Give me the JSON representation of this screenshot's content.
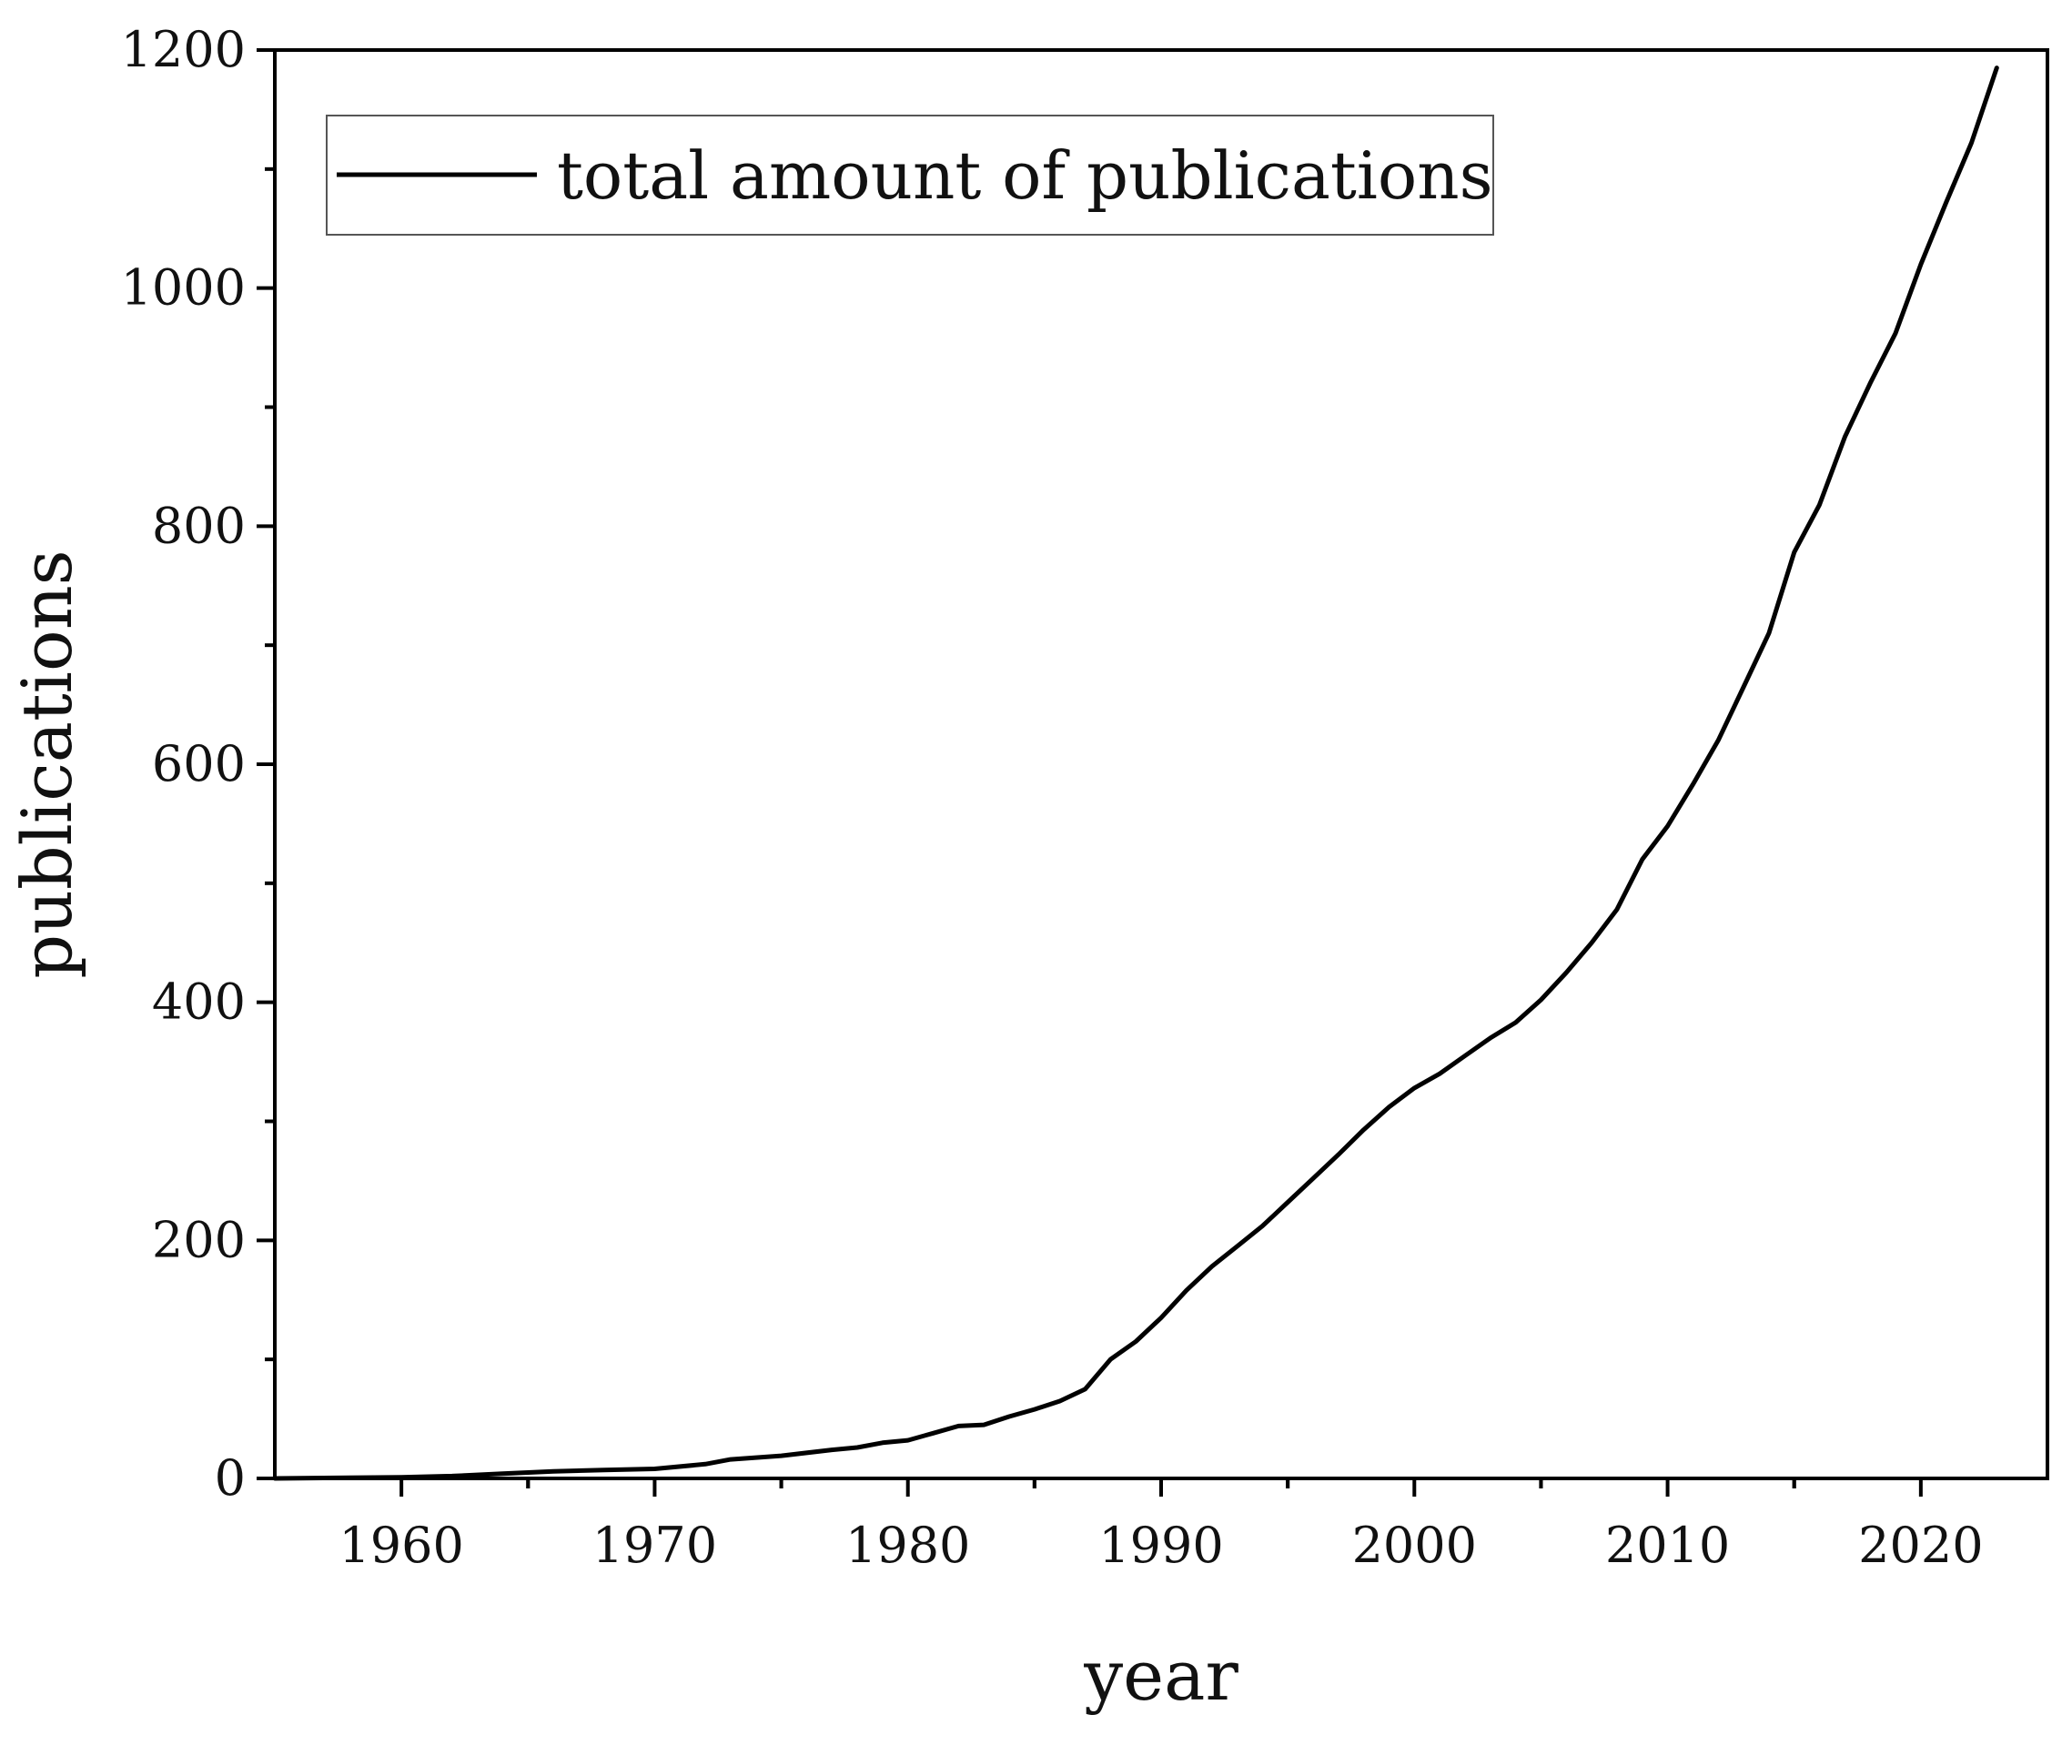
{
  "chart_data": {
    "type": "line",
    "title": "",
    "xlabel": "year",
    "ylabel": "publications",
    "xlim": [
      1955,
      2025
    ],
    "ylim": [
      0,
      1200
    ],
    "x_ticks": [
      1960,
      1970,
      1980,
      1990,
      2000,
      2010,
      2020
    ],
    "y_ticks": [
      0,
      200,
      400,
      600,
      800,
      1000,
      1200
    ],
    "grid": false,
    "legend_position": "top-left",
    "series": [
      {
        "name": "total amount of publications",
        "color": "#000000",
        "x": [
          1955,
          1960,
          1962,
          1964,
          1966,
          1968,
          1970,
          1972,
          1973,
          1975,
          1977,
          1978,
          1979,
          1980,
          1981,
          1982,
          1983,
          1984,
          1985,
          1986,
          1987,
          1988,
          1989,
          1990,
          1991,
          1992,
          1993,
          1994,
          1995,
          1996,
          1997,
          1998,
          1999,
          2000,
          2001,
          2002,
          2003,
          2004,
          2005,
          2006,
          2007,
          2008,
          2009,
          2010,
          2011,
          2012,
          2013,
          2014,
          2015,
          2016,
          2017,
          2018,
          2019,
          2020,
          2021,
          2022,
          2023
        ],
        "y": [
          0,
          1,
          2,
          4,
          6,
          7,
          8,
          12,
          16,
          19,
          24,
          26,
          30,
          32,
          38,
          44,
          45,
          52,
          58,
          65,
          75,
          100,
          115,
          135,
          158,
          178,
          195,
          212,
          232,
          252,
          272,
          293,
          312,
          328,
          340,
          355,
          370,
          383,
          402,
          425,
          450,
          478,
          520,
          548,
          583,
          620,
          665,
          710,
          778,
          818,
          875,
          920,
          962,
          1020,
          1072,
          1122,
          1185
        ]
      }
    ]
  }
}
